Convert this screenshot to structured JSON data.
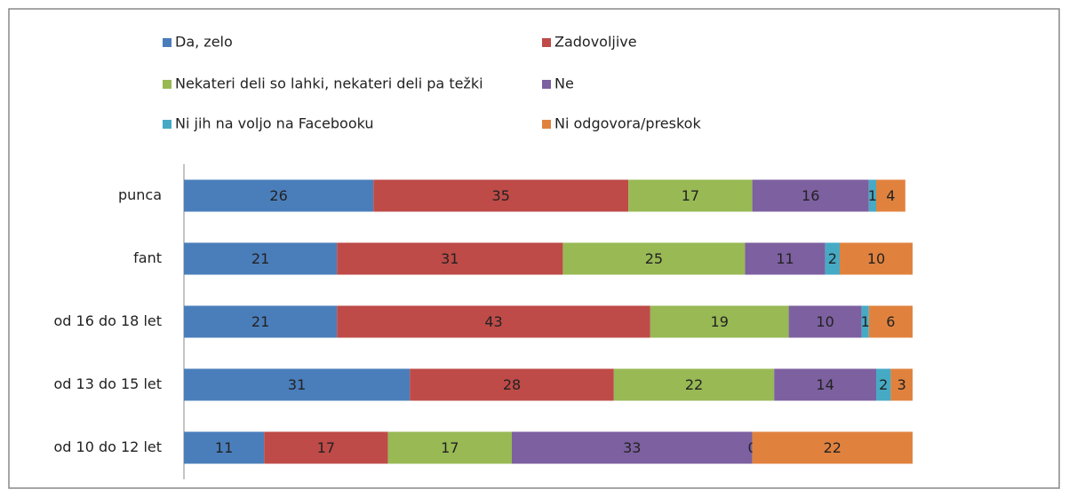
{
  "chart_data": {
    "type": "stacked-bar",
    "orientation": "horizontal",
    "categories": [
      "punca",
      "fant",
      "od 16 do 18 let",
      "od 13 do 15 let",
      "od 10 do 12 let"
    ],
    "series": [
      {
        "name": "Da, zelo",
        "color": "#4a7ebb",
        "values": [
          26,
          21,
          21,
          31,
          11
        ]
      },
      {
        "name": "Zadovoljive",
        "color": "#be4b48",
        "values": [
          35,
          31,
          43,
          28,
          17
        ]
      },
      {
        "name": "Nekateri deli so lahki, nekateri deli pa težki",
        "color": "#98b954",
        "values": [
          17,
          25,
          19,
          22,
          17
        ]
      },
      {
        "name": "Ne",
        "color": "#7d60a0",
        "values": [
          16,
          11,
          10,
          14,
          33
        ]
      },
      {
        "name": "Ni jih na voljo na Facebooku",
        "color": "#46aac5",
        "values": [
          1,
          2,
          1,
          2,
          0
        ]
      },
      {
        "name": "Ni odgovora/preskok",
        "color": "#e0823e",
        "values": [
          4,
          10,
          6,
          3,
          22
        ]
      }
    ],
    "legend": "top"
  }
}
